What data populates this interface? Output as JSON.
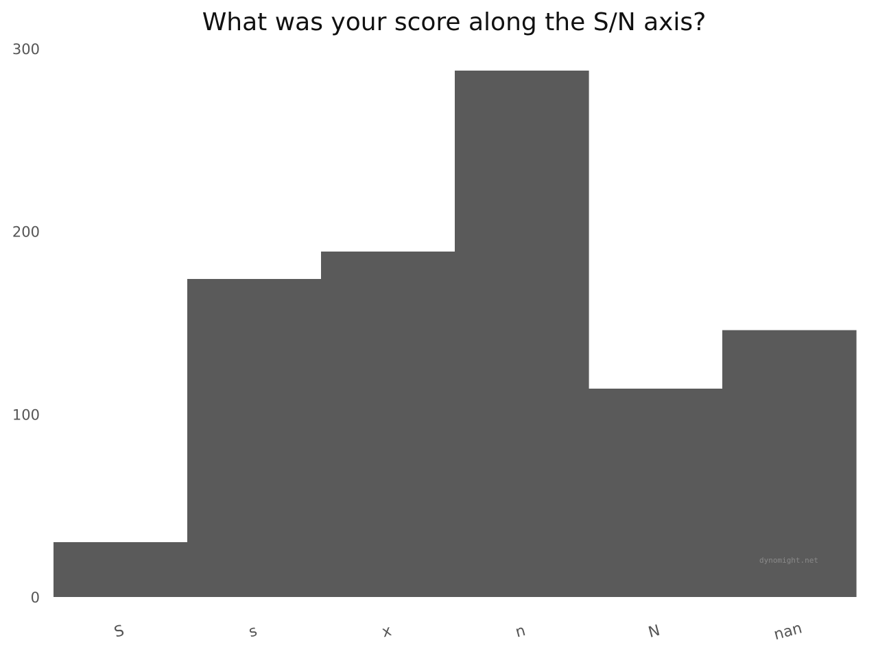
{
  "chart_data": {
    "type": "bar",
    "title": "What was your score along the S/N axis?",
    "xlabel": "",
    "ylabel": "",
    "categories": [
      "S",
      "s",
      "x",
      "n",
      "N",
      "nan"
    ],
    "values": [
      30,
      174,
      189,
      288,
      114,
      146
    ],
    "ylim": [
      0,
      300
    ],
    "yticks": [
      0,
      100,
      200,
      300
    ],
    "grid": false,
    "legend": "none",
    "bar_color": "#5a5a5a",
    "bar_gap": 0
  },
  "watermark": "dynomight.net"
}
